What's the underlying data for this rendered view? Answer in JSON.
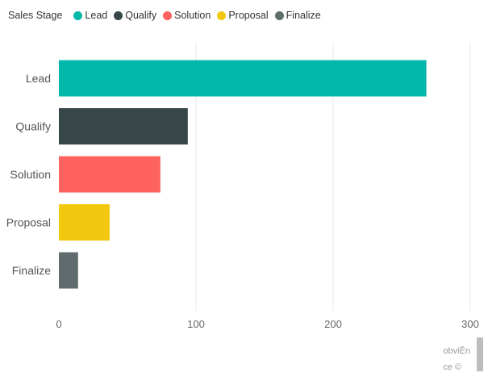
{
  "legend": {
    "title": "Sales Stage",
    "items": [
      {
        "label": "Lead",
        "color": "#01B8AA"
      },
      {
        "label": "Qualify",
        "color": "#374649"
      },
      {
        "label": "Solution",
        "color": "#FD625E"
      },
      {
        "label": "Proposal",
        "color": "#F2C80F"
      },
      {
        "label": "Finalize",
        "color": "#5F6B6D"
      }
    ]
  },
  "chart_data": {
    "type": "bar",
    "orientation": "horizontal",
    "categories": [
      "Lead",
      "Qualify",
      "Solution",
      "Proposal",
      "Finalize"
    ],
    "values": [
      268,
      94,
      74,
      37,
      14
    ],
    "colors": [
      "#01B8AA",
      "#374649",
      "#FD625E",
      "#F2C80F",
      "#5F6B6D"
    ],
    "xlim": [
      0,
      300
    ],
    "xticks": [
      0,
      100,
      200,
      300
    ],
    "grid": true,
    "legend_placement": "top-left"
  },
  "footer": {
    "line1": "obviĒn",
    "line2": "ce ©"
  }
}
